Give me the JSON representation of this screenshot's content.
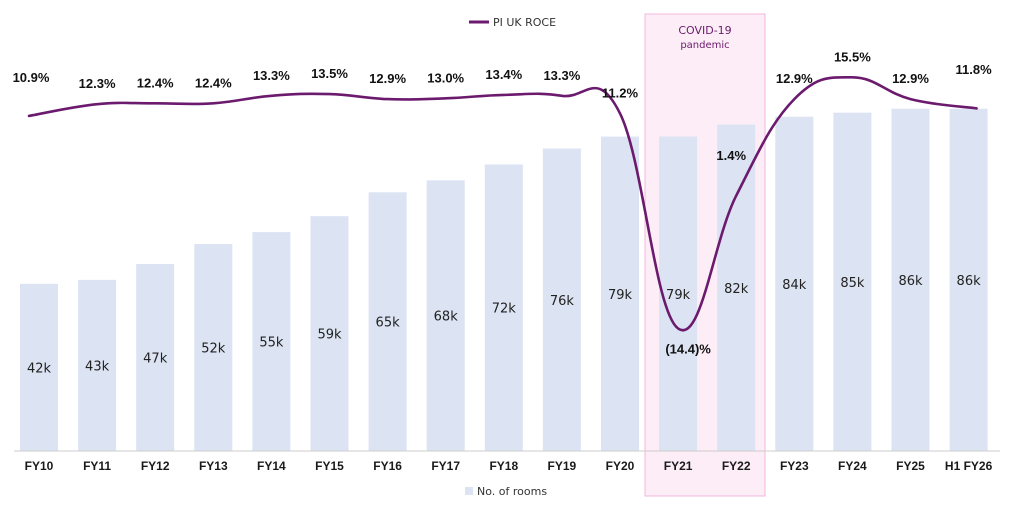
{
  "chart_data": {
    "type": "bar",
    "title": "",
    "categories": [
      "FY10",
      "FY11",
      "FY12",
      "FY13",
      "FY14",
      "FY15",
      "FY16",
      "FY17",
      "FY18",
      "FY19",
      "FY20",
      "FY21",
      "FY22",
      "FY23",
      "FY24",
      "FY25",
      "H1 FY26"
    ],
    "series": [
      {
        "name": "No. of rooms",
        "type": "bar",
        "values": [
          42,
          43,
          47,
          52,
          55,
          59,
          65,
          68,
          72,
          76,
          79,
          79,
          82,
          84,
          85,
          86,
          86
        ],
        "labels": [
          "42k",
          "43k",
          "47k",
          "52k",
          "55k",
          "59k",
          "65k",
          "68k",
          "72k",
          "76k",
          "79k",
          "79k",
          "82k",
          "84k",
          "85k",
          "86k",
          "86k"
        ]
      },
      {
        "name": "PI UK ROCE",
        "type": "line",
        "values": [
          10.9,
          12.3,
          12.4,
          12.4,
          13.3,
          13.5,
          12.9,
          13.0,
          13.4,
          13.3,
          11.2,
          -14.4,
          1.4,
          12.9,
          15.5,
          12.9,
          11.8
        ],
        "labels": [
          "10.9%",
          "12.3%",
          "12.4%",
          "12.4%",
          "13.3%",
          "13.5%",
          "12.9%",
          "13.0%",
          "13.4%",
          "13.3%",
          "11.2%",
          "(14.4)%",
          "1.4%",
          "12.9%",
          "15.5%",
          "12.9%",
          "11.8%"
        ]
      }
    ],
    "bar_ylim": [
      0,
      95
    ],
    "line_ylim": [
      -20,
      20
    ],
    "legend_position": "top-center and bottom-center",
    "annotation": {
      "text_line1": "COVID-19",
      "text_line2": "pandemic",
      "span": [
        "FY21",
        "FY22"
      ]
    },
    "colors": {
      "bar": "#dce3f2",
      "line": "#6b1a6e",
      "covid_fill": "#fcedf6",
      "covid_border": "#f2b8dd",
      "axis": "#cccccc"
    }
  },
  "legend": {
    "line_label": "PI UK ROCE",
    "bar_label": "No. of rooms"
  }
}
